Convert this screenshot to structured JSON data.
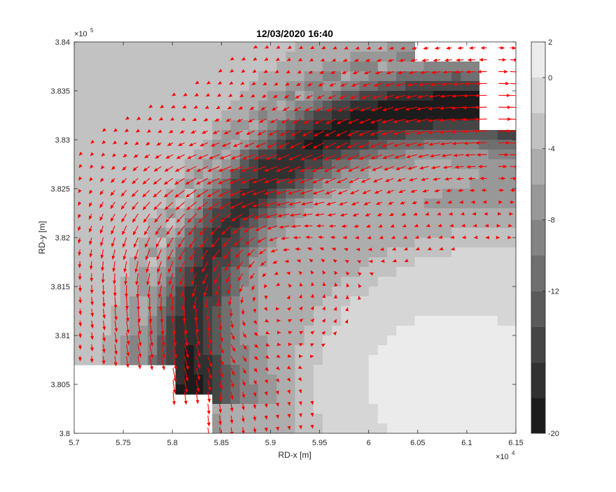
{
  "chart_data": {
    "type": "heatmap",
    "title": "12/03/2020 16:40",
    "xlabel": "RD-x [m]",
    "ylabel": "RD-y [m]",
    "x_exponent_label": "×10",
    "x_exponent_power": "4",
    "y_exponent_label": "×10",
    "y_exponent_power": "5",
    "xlim": [
      57000,
      61500
    ],
    "ylim": [
      380000,
      384000
    ],
    "x_ticks": [
      5.7,
      5.75,
      5.8,
      5.85,
      5.9,
      5.95,
      6.0,
      6.05,
      6.1,
      6.15
    ],
    "x_tick_labels": [
      "5.7",
      "5.75",
      "5.8",
      "5.85",
      "5.9",
      "5.95",
      "6",
      "6.05",
      "6.1",
      "6.15"
    ],
    "y_ticks": [
      3.8,
      3.805,
      3.81,
      3.815,
      3.82,
      3.825,
      3.83,
      3.835,
      3.84
    ],
    "y_tick_labels": [
      "3.8",
      "3.805",
      "3.81",
      "3.815",
      "3.82",
      "3.825",
      "3.83",
      "3.835",
      "3.84"
    ],
    "colorbar": {
      "range": [
        -20,
        2
      ],
      "levels": [
        2,
        0,
        -2,
        -4,
        -6,
        -8,
        -10,
        -12,
        -14,
        -16,
        -18,
        -20
      ],
      "tick_values": [
        2,
        0,
        -4,
        -8,
        -12,
        -20
      ],
      "tick_labels": [
        "2",
        "0",
        "-4",
        "-8",
        "-12",
        "-20"
      ],
      "colormap": "gray",
      "color_low": "#1c1c1c",
      "color_high": "#ebebeb"
    },
    "vector_color": "#ff0000",
    "series": [
      {
        "type": "filled-contour (bed level)"
      },
      {
        "type": "quiver (flow velocity)"
      }
    ]
  }
}
